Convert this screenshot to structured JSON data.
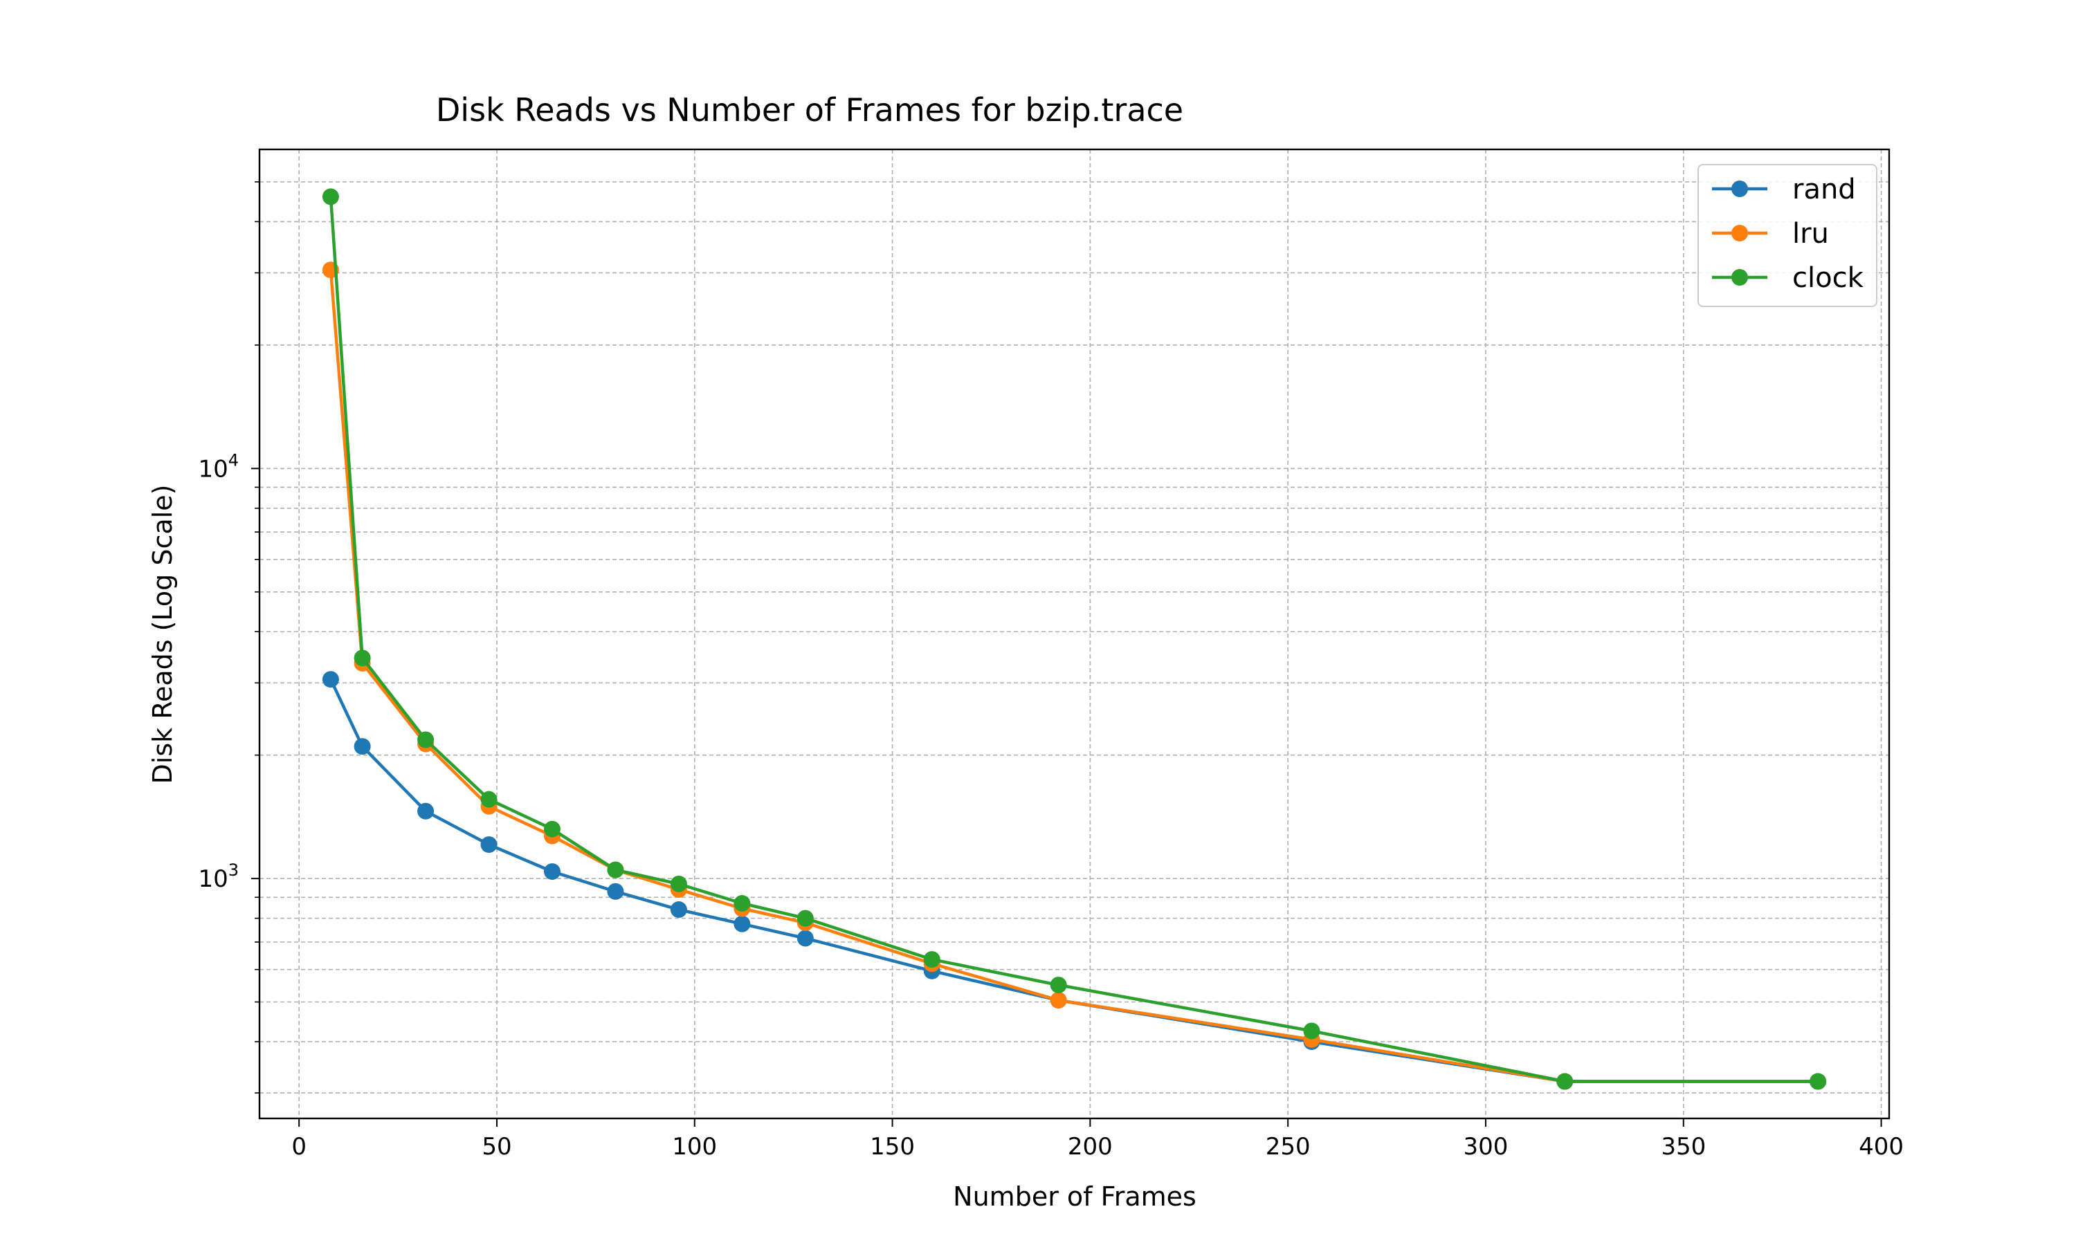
{
  "chart_data": {
    "type": "line",
    "title": "Disk Reads vs Number of Frames for bzip.trace",
    "xlabel": "Number of Frames",
    "ylabel": "Disk Reads (Log Scale)",
    "xlim": [
      -10,
      402
    ],
    "ylim": [
      260,
      60000
    ],
    "yscale": "log",
    "grid": true,
    "legend_position": "top-right",
    "x_ticks": [
      0,
      50,
      100,
      150,
      200,
      250,
      300,
      350,
      400
    ],
    "y_major_ticks": [
      1000,
      10000
    ],
    "y_major_tick_labels": [
      {
        "base": "10",
        "exp": "3"
      },
      {
        "base": "10",
        "exp": "4"
      }
    ],
    "y_minor_ticks": [
      300,
      400,
      500,
      600,
      700,
      800,
      900,
      2000,
      3000,
      4000,
      5000,
      6000,
      7000,
      8000,
      9000,
      20000,
      30000,
      40000,
      50000
    ],
    "series": [
      {
        "name": "rand",
        "color": "#1f77b4",
        "x": [
          8,
          16,
          32,
          48,
          64,
          80,
          96,
          112,
          128,
          160,
          192,
          256,
          320,
          384
        ],
        "values": [
          3060,
          2100,
          1460,
          1210,
          1040,
          930,
          840,
          775,
          715,
          595,
          505,
          400,
          320,
          320
        ]
      },
      {
        "name": "lru",
        "color": "#ff7f0e",
        "x": [
          8,
          16,
          32,
          48,
          64,
          80,
          96,
          112,
          128,
          160,
          192,
          256,
          320,
          384
        ],
        "values": [
          30500,
          3350,
          2130,
          1500,
          1270,
          1050,
          940,
          845,
          780,
          620,
          505,
          405,
          320,
          320
        ]
      },
      {
        "name": "clock",
        "color": "#2ca02c",
        "x": [
          8,
          16,
          32,
          48,
          64,
          80,
          96,
          112,
          128,
          160,
          192,
          256,
          320,
          384
        ],
        "values": [
          46000,
          3450,
          2180,
          1560,
          1320,
          1050,
          970,
          870,
          800,
          635,
          550,
          425,
          320,
          320
        ]
      }
    ]
  }
}
